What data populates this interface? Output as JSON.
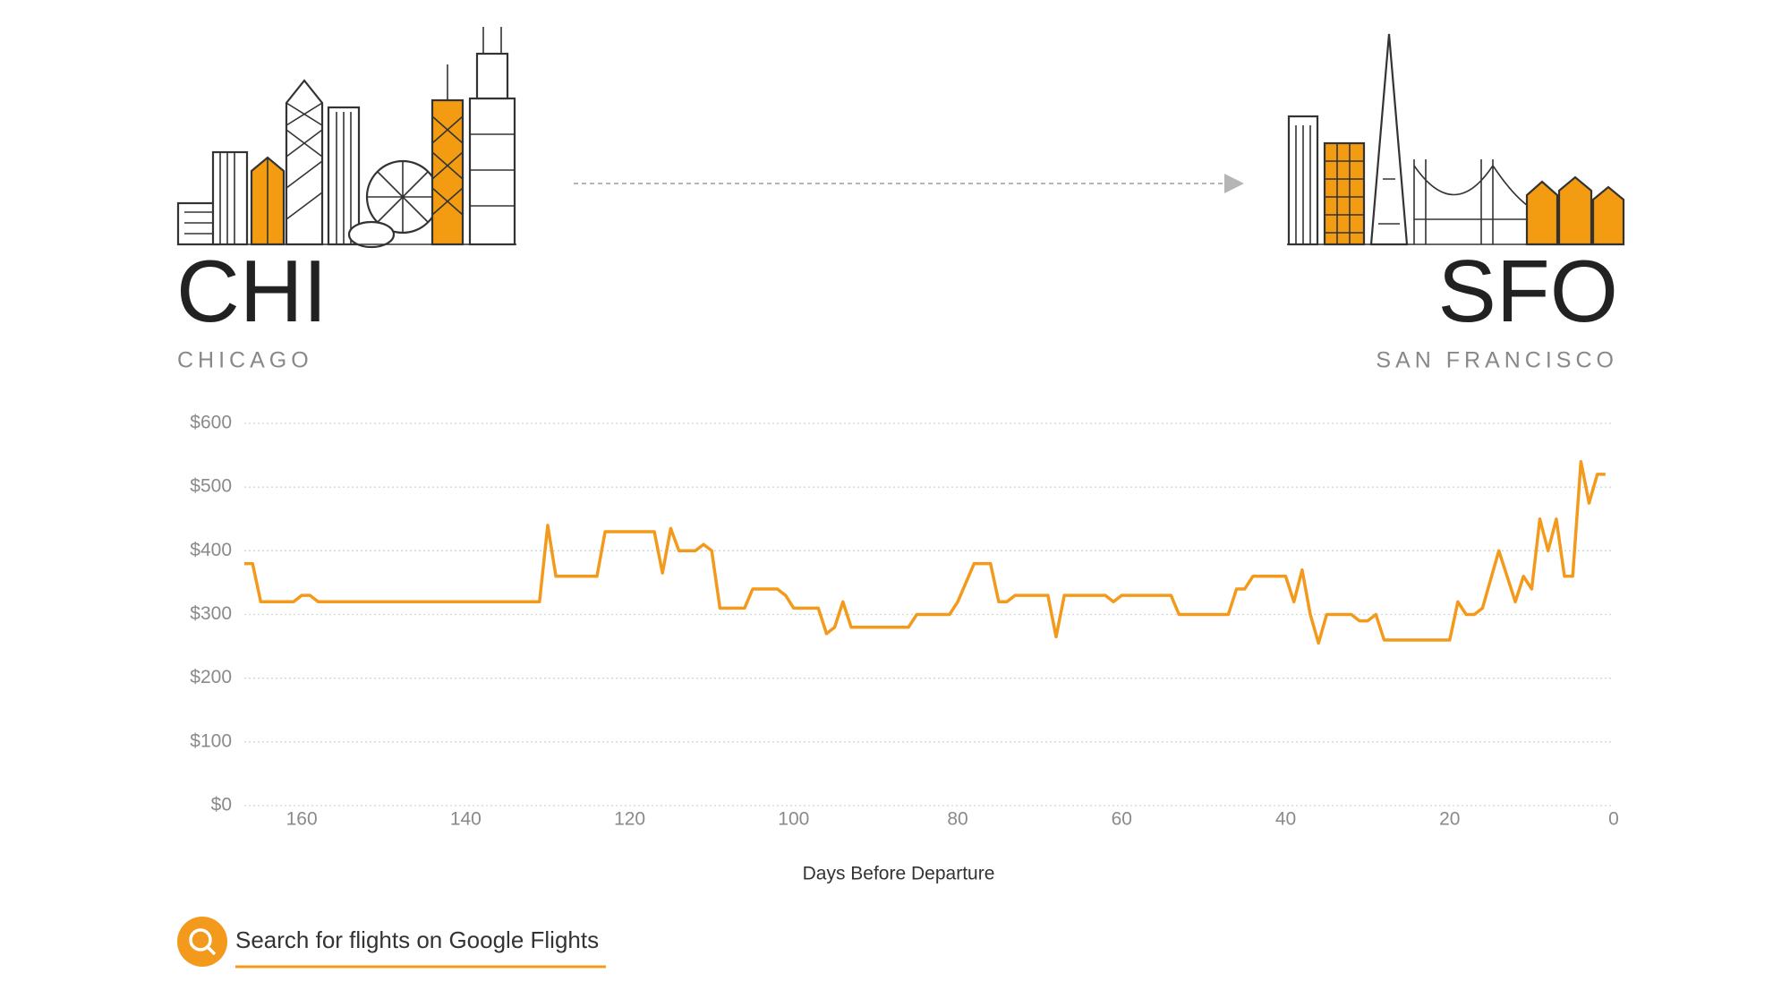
{
  "header": {
    "origin_code": "CHI",
    "origin_name": "CHICAGO",
    "destination_code": "SFO",
    "destination_name": "SAN FRANCISCO"
  },
  "chart_data": {
    "type": "line",
    "xlabel": "Days Before Departure",
    "color": "#f39a1c",
    "x": [
      167,
      166,
      165,
      161,
      160,
      159,
      158,
      131,
      130,
      129,
      124,
      123,
      117,
      116,
      115,
      114,
      112,
      111,
      110,
      109,
      106,
      105,
      102,
      101,
      100,
      97,
      96,
      95,
      94,
      93,
      86,
      85,
      81,
      80,
      78,
      76,
      75,
      74,
      73,
      69,
      68,
      67,
      62,
      61,
      60,
      54,
      53,
      47,
      46,
      45,
      44,
      40,
      39,
      38,
      37,
      36,
      35,
      32,
      31,
      30,
      29,
      28,
      20,
      19,
      18,
      17,
      16,
      14,
      12,
      11,
      10,
      9,
      8,
      7,
      6,
      5,
      4,
      3,
      2,
      1
    ],
    "values": [
      380,
      380,
      320,
      320,
      330,
      330,
      320,
      320,
      440,
      360,
      360,
      430,
      430,
      365,
      435,
      400,
      400,
      410,
      400,
      310,
      310,
      340,
      340,
      330,
      310,
      310,
      270,
      280,
      320,
      280,
      280,
      300,
      300,
      320,
      380,
      380,
      320,
      320,
      330,
      330,
      265,
      330,
      330,
      320,
      330,
      330,
      300,
      300,
      340,
      340,
      360,
      360,
      320,
      370,
      300,
      255,
      300,
      300,
      290,
      290,
      300,
      260,
      260,
      320,
      300,
      300,
      310,
      400,
      320,
      360,
      340,
      450,
      400,
      450,
      360,
      360,
      540,
      475,
      520,
      520
    ],
    "xlim": [
      167,
      0
    ],
    "xticks": [
      160,
      140,
      120,
      100,
      80,
      60,
      40,
      20,
      0
    ],
    "ylim": [
      0,
      600
    ],
    "yticks": [
      {
        "value": 0,
        "label": "$0"
      },
      {
        "value": 100,
        "label": "$100"
      },
      {
        "value": 200,
        "label": "$200"
      },
      {
        "value": 300,
        "label": "$300"
      },
      {
        "value": 400,
        "label": "$400"
      },
      {
        "value": 500,
        "label": "$500"
      },
      {
        "value": 600,
        "label": "$600"
      }
    ],
    "grid": true
  },
  "link": {
    "text": "Search for flights on Google Flights"
  }
}
